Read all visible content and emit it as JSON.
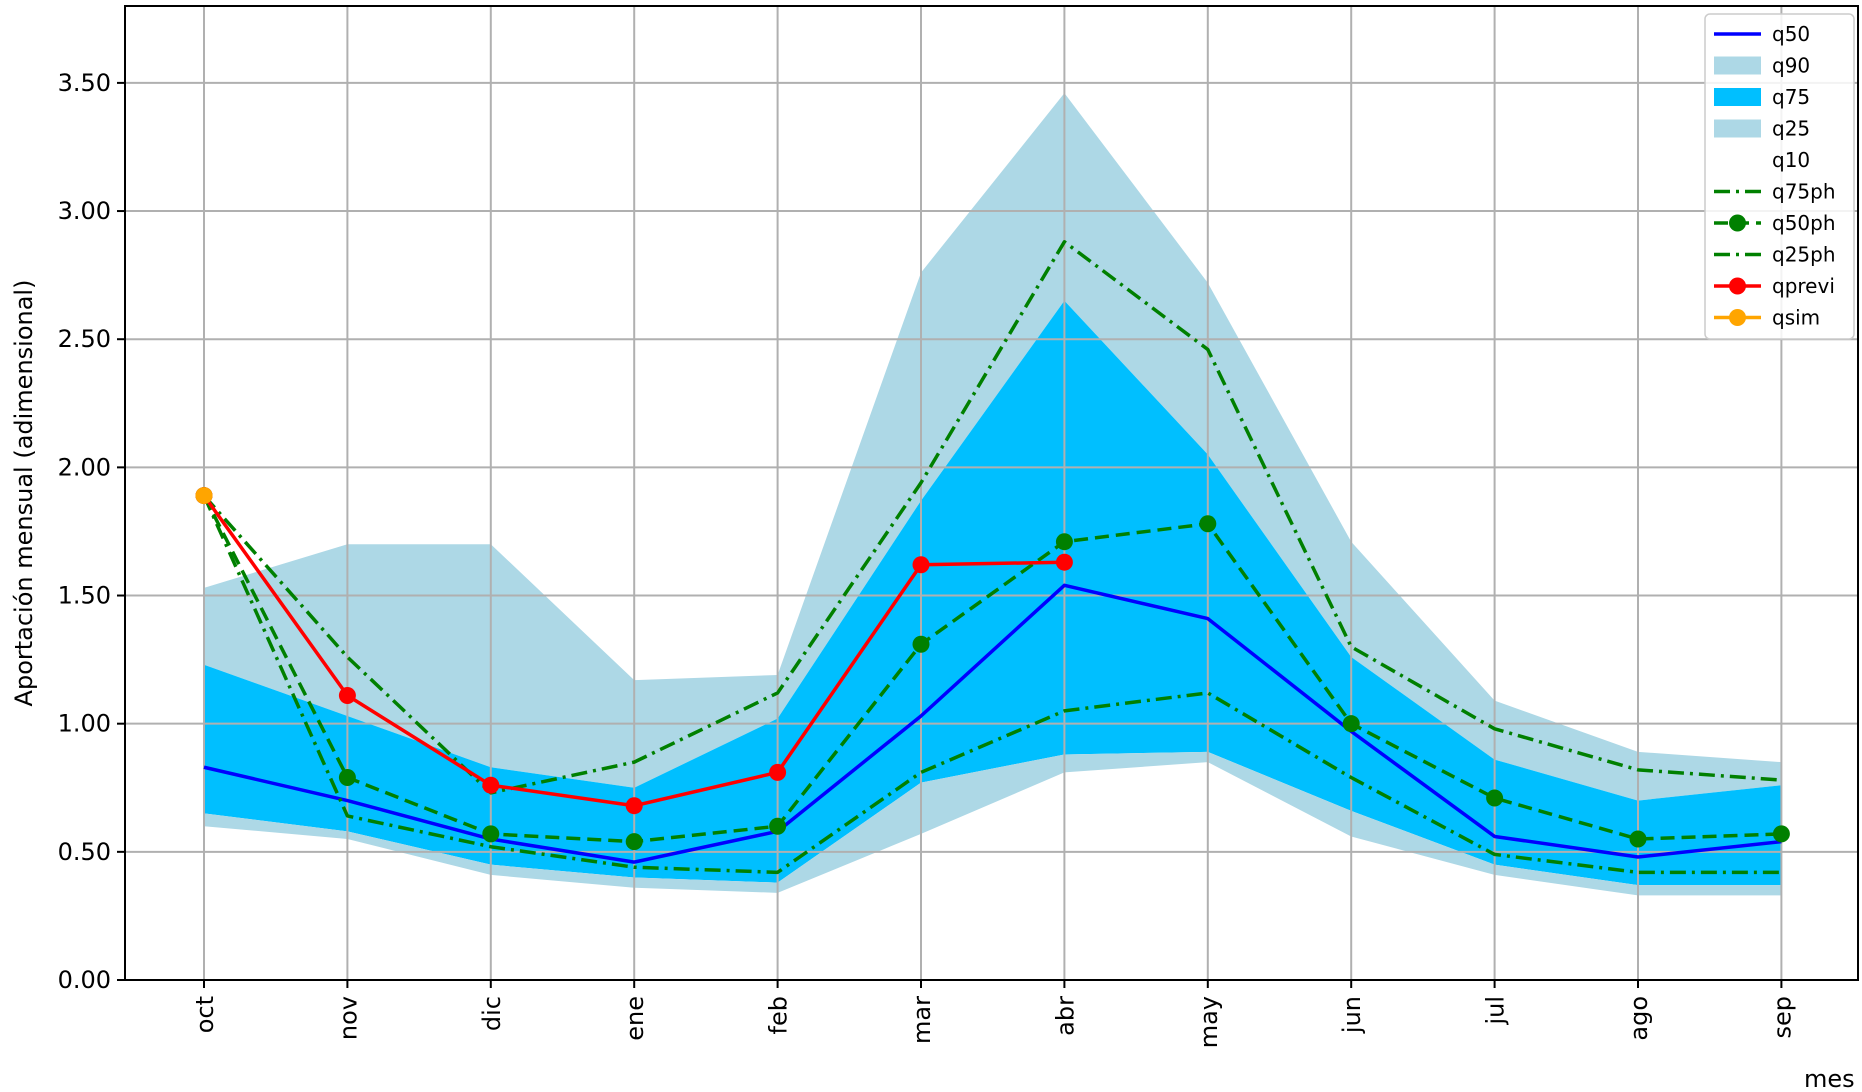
{
  "chart_data": {
    "type": "line",
    "xlabel": "mes",
    "ylabel": "Aportación mensual (adimensional)",
    "categories": [
      "oct",
      "nov",
      "dic",
      "ene",
      "feb",
      "mar",
      "abr",
      "may",
      "jun",
      "jul",
      "ago",
      "sep"
    ],
    "ylim": [
      0,
      3.8
    ],
    "yticks": [
      "0.00",
      "0.50",
      "1.00",
      "1.50",
      "2.00",
      "2.50",
      "3.00",
      "3.50"
    ],
    "grid": true,
    "legend_position": "top-right",
    "bands": [
      {
        "name": "q90",
        "color": "#add8e6",
        "upper": [
          1.53,
          1.7,
          1.7,
          1.17,
          1.19,
          2.76,
          3.46,
          2.72,
          1.71,
          1.09,
          0.89,
          0.85
        ],
        "lower": [
          1.23,
          1.03,
          0.83,
          0.75,
          1.02,
          1.87,
          2.65,
          2.05,
          1.26,
          0.86,
          0.7,
          0.76
        ]
      },
      {
        "name": "q75",
        "color": "#00bfff",
        "upper": [
          1.23,
          1.03,
          0.83,
          0.75,
          1.02,
          1.87,
          2.65,
          2.05,
          1.26,
          0.86,
          0.7,
          0.76
        ],
        "lower": [
          0.65,
          0.58,
          0.45,
          0.4,
          0.38,
          0.77,
          0.88,
          0.89,
          0.66,
          0.45,
          0.37,
          0.37
        ]
      },
      {
        "name": "q25",
        "color": "#add8e6",
        "upper": [
          0.65,
          0.58,
          0.45,
          0.4,
          0.38,
          0.77,
          0.88,
          0.89,
          0.66,
          0.45,
          0.37,
          0.37
        ],
        "lower": [
          0.6,
          0.55,
          0.41,
          0.36,
          0.34,
          0.57,
          0.81,
          0.85,
          0.56,
          0.41,
          0.33,
          0.33
        ]
      },
      {
        "name": "q10",
        "color": "#ffffff",
        "upper": [
          0.6,
          0.55,
          0.41,
          0.36,
          0.34,
          0.57,
          0.81,
          0.85,
          0.56,
          0.41,
          0.33,
          0.33
        ],
        "lower": [
          0.6,
          0.55,
          0.41,
          0.36,
          0.34,
          0.57,
          0.81,
          0.85,
          0.56,
          0.41,
          0.33,
          0.33
        ]
      }
    ],
    "series": [
      {
        "name": "q50",
        "color": "#0000ff",
        "dash": "solid",
        "marker": false,
        "values": [
          0.83,
          0.7,
          0.55,
          0.46,
          0.58,
          1.03,
          1.54,
          1.41,
          0.97,
          0.56,
          0.48,
          0.54
        ]
      },
      {
        "name": "q75ph",
        "color": "#008000",
        "dash": "dashdot",
        "marker": false,
        "values": [
          1.89,
          1.26,
          0.73,
          0.85,
          1.12,
          1.94,
          2.88,
          2.46,
          1.3,
          0.98,
          0.82,
          0.78
        ]
      },
      {
        "name": "q50ph",
        "color": "#008000",
        "dash": "dashed",
        "marker": true,
        "values": [
          1.89,
          0.79,
          0.57,
          0.54,
          0.6,
          1.31,
          1.71,
          1.78,
          1.0,
          0.71,
          0.55,
          0.57
        ]
      },
      {
        "name": "q25ph",
        "color": "#008000",
        "dash": "dashdot",
        "marker": false,
        "values": [
          1.89,
          0.64,
          0.52,
          0.44,
          0.42,
          0.81,
          1.05,
          1.12,
          0.79,
          0.49,
          0.42,
          0.42
        ]
      },
      {
        "name": "qprevi",
        "color": "#ff0000",
        "dash": "solid",
        "marker": true,
        "values": [
          1.89,
          1.11,
          0.76,
          0.68,
          0.81,
          1.62,
          1.63,
          null,
          null,
          null,
          null,
          null
        ]
      },
      {
        "name": "qsim",
        "color": "#ffa500",
        "dash": "solid",
        "marker": true,
        "values": [
          1.89,
          null,
          null,
          null,
          null,
          null,
          null,
          null,
          null,
          null,
          null,
          null
        ]
      }
    ],
    "legend": [
      {
        "name": "q50",
        "kind": "line",
        "color": "#0000ff",
        "dash": "solid",
        "marker": false
      },
      {
        "name": "q90",
        "kind": "patch",
        "color": "#add8e6"
      },
      {
        "name": "q75",
        "kind": "patch",
        "color": "#00bfff"
      },
      {
        "name": "q25",
        "kind": "patch",
        "color": "#add8e6"
      },
      {
        "name": "q10",
        "kind": "patch",
        "color": "#ffffff"
      },
      {
        "name": "q75ph",
        "kind": "line",
        "color": "#008000",
        "dash": "dashdot",
        "marker": false
      },
      {
        "name": "q50ph",
        "kind": "line",
        "color": "#008000",
        "dash": "dashed",
        "marker": true
      },
      {
        "name": "q25ph",
        "kind": "line",
        "color": "#008000",
        "dash": "dashdot",
        "marker": false
      },
      {
        "name": "qprevi",
        "kind": "line",
        "color": "#ff0000",
        "dash": "solid",
        "marker": true
      },
      {
        "name": "qsim",
        "kind": "line",
        "color": "#ffa500",
        "dash": "solid",
        "marker": true
      }
    ]
  }
}
